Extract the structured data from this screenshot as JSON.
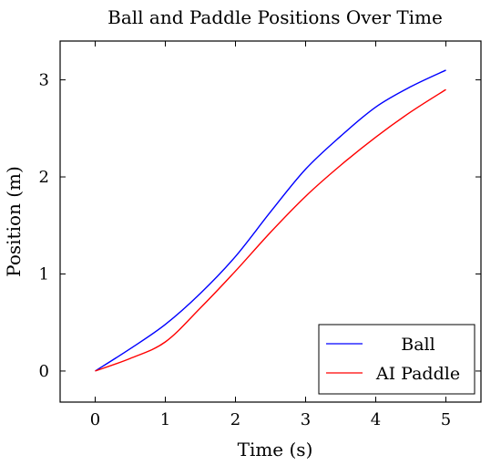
{
  "chart_data": {
    "type": "line",
    "title": "Ball and Paddle Positions Over Time",
    "xlabel": "Time (s)",
    "ylabel": "Position (m)",
    "xlim": [
      -0.5,
      5.5
    ],
    "ylim": [
      -0.32,
      3.4
    ],
    "xticks": [
      0,
      1,
      2,
      3,
      4,
      5
    ],
    "yticks": [
      0,
      1,
      2,
      3
    ],
    "grid": false,
    "legend_position": "bottom-right",
    "series": [
      {
        "name": "Ball",
        "color": "#0000ff",
        "x": [
          0,
          0.5,
          1,
          1.5,
          2,
          2.5,
          3,
          3.5,
          4,
          4.5,
          5
        ],
        "y": [
          0,
          0.23,
          0.48,
          0.8,
          1.18,
          1.64,
          2.08,
          2.42,
          2.72,
          2.93,
          3.1
        ]
      },
      {
        "name": "AI Paddle",
        "color": "#ff0000",
        "x": [
          0,
          0.5,
          1,
          1.5,
          2,
          2.5,
          3,
          3.5,
          4,
          4.5,
          5
        ],
        "y": [
          0,
          0.13,
          0.3,
          0.65,
          1.03,
          1.43,
          1.8,
          2.12,
          2.41,
          2.67,
          2.9
        ]
      }
    ]
  }
}
